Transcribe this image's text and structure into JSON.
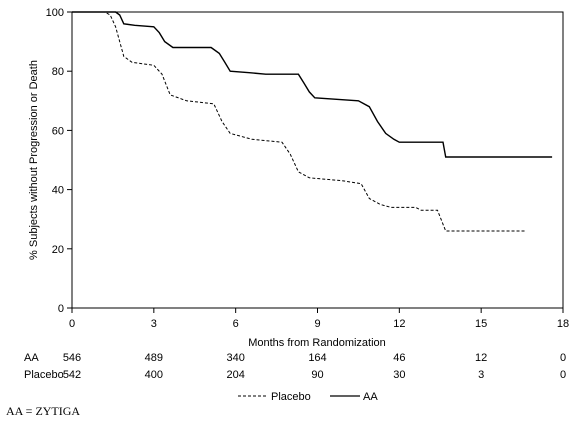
{
  "chart_data": {
    "type": "line",
    "title": "",
    "xlabel": "Months from Randomization",
    "ylabel": "% Subjects without Progression or Death",
    "xlim": [
      0,
      18
    ],
    "ylim": [
      0,
      100
    ],
    "xticks": [
      0,
      3,
      6,
      9,
      12,
      15,
      18
    ],
    "yticks": [
      0,
      20,
      40,
      60,
      80,
      100
    ],
    "legend_placement": "bottom",
    "series": [
      {
        "name": "AA",
        "style": "solid",
        "color": "#000000",
        "points": [
          [
            0,
            100
          ],
          [
            1.6,
            100
          ],
          [
            1.75,
            99
          ],
          [
            1.9,
            96
          ],
          [
            2.3,
            95.5
          ],
          [
            3.0,
            95
          ],
          [
            3.2,
            93
          ],
          [
            3.4,
            90
          ],
          [
            3.7,
            88
          ],
          [
            5.1,
            88
          ],
          [
            5.4,
            86
          ],
          [
            5.6,
            83
          ],
          [
            5.8,
            80
          ],
          [
            6.5,
            79.5
          ],
          [
            7.1,
            79
          ],
          [
            8.3,
            79
          ],
          [
            8.5,
            76
          ],
          [
            8.7,
            73
          ],
          [
            8.9,
            71
          ],
          [
            10.5,
            70
          ],
          [
            10.9,
            68
          ],
          [
            11.2,
            63
          ],
          [
            11.5,
            59
          ],
          [
            11.8,
            57
          ],
          [
            12.0,
            56
          ],
          [
            13.6,
            56
          ],
          [
            13.7,
            51
          ],
          [
            17.6,
            51
          ]
        ]
      },
      {
        "name": "Placebo",
        "style": "dashed",
        "color": "#000000",
        "points": [
          [
            0,
            100
          ],
          [
            1.2,
            100
          ],
          [
            1.4,
            99
          ],
          [
            1.6,
            95
          ],
          [
            1.75,
            90
          ],
          [
            1.9,
            85
          ],
          [
            2.2,
            83
          ],
          [
            3.0,
            82
          ],
          [
            3.3,
            79
          ],
          [
            3.6,
            72
          ],
          [
            4.2,
            70
          ],
          [
            5.2,
            69
          ],
          [
            5.5,
            63
          ],
          [
            5.8,
            59
          ],
          [
            6.6,
            57
          ],
          [
            7.7,
            56
          ],
          [
            8.0,
            52
          ],
          [
            8.3,
            46
          ],
          [
            8.7,
            44
          ],
          [
            9.9,
            43
          ],
          [
            10.6,
            42
          ],
          [
            10.9,
            37
          ],
          [
            11.3,
            35
          ],
          [
            11.7,
            34
          ],
          [
            12.6,
            34
          ],
          [
            12.8,
            33
          ],
          [
            13.4,
            33
          ],
          [
            13.7,
            26
          ],
          [
            16.6,
            26
          ]
        ]
      }
    ],
    "risk_table": {
      "rows": [
        {
          "label": "AA",
          "counts": [
            "546",
            "489",
            "340",
            "164",
            "46",
            "12",
            "0"
          ]
        },
        {
          "label": "Placebo",
          "counts": [
            "542",
            "400",
            "204",
            "90",
            "30",
            "3",
            "0"
          ]
        }
      ],
      "x_positions": [
        0,
        3,
        6,
        9,
        12,
        15,
        18
      ]
    },
    "legend": [
      {
        "label": "Placebo",
        "style": "dashed"
      },
      {
        "label": "AA",
        "style": "solid"
      }
    ]
  },
  "footnote": "AA = ZYTIGA"
}
